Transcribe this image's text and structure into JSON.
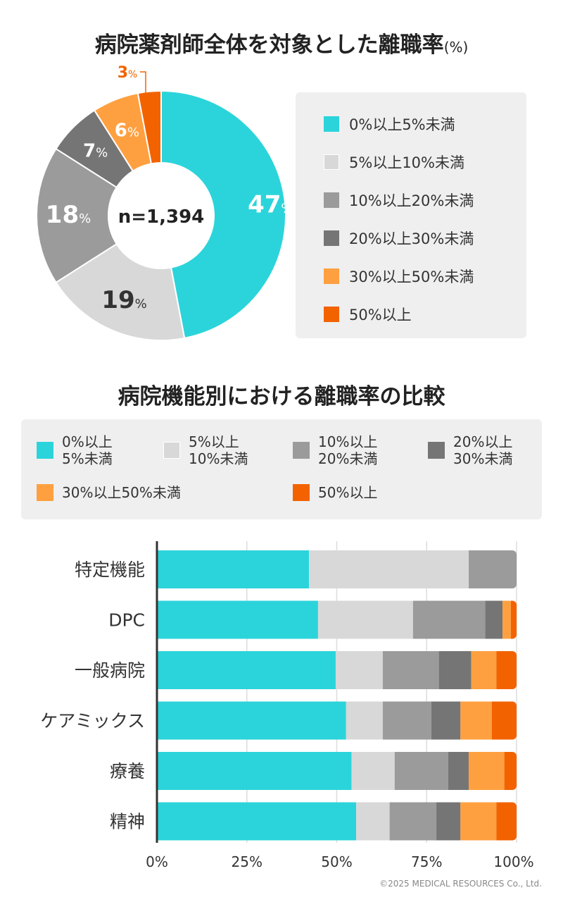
{
  "colors": [
    "#2bd4da",
    "#d8d8d8",
    "#9b9b9b",
    "#757575",
    "#ffa040",
    "#f26300"
  ],
  "chart_data": [
    {
      "type": "pie",
      "title": "病院薬剤師全体を対象とした離職率",
      "title_unit": "(%)",
      "center_label": "n=1,394",
      "categories": [
        "0%以上5%未満",
        "5%以上10%未満",
        "10%以上20%未満",
        "20%以上30%未満",
        "30%以上50%未満",
        "50%以上"
      ],
      "values": [
        47,
        19,
        18,
        7,
        6,
        3
      ],
      "value_suffix": "%",
      "donut": true,
      "legend": "right"
    },
    {
      "type": "bar",
      "orientation": "horizontal",
      "stacked": true,
      "title": "病院機能別における離職率の比較",
      "categories": [
        "特定機能",
        "DPC",
        "一般病院",
        "ケアミックス",
        "療養",
        "精神"
      ],
      "series": [
        {
          "name": "0%以上5%未満",
          "legend_lines": [
            "0%以上",
            "5%未満"
          ],
          "values": [
            42.3,
            44.8,
            49.7,
            52.6,
            54.1,
            55.4
          ]
        },
        {
          "name": "5%以上10%未満",
          "legend_lines": [
            "5%以上",
            "10%未満"
          ],
          "values": [
            44.4,
            26.4,
            13.1,
            10.2,
            12.0,
            9.3
          ]
        },
        {
          "name": "10%以上20%未満",
          "legend_lines": [
            "10%以上",
            "20%未満"
          ],
          "values": [
            13.3,
            20.1,
            15.6,
            13.5,
            14.9,
            13.0
          ]
        },
        {
          "name": "20%以上30%未満",
          "legend_lines": [
            "20%以上",
            "30%未満"
          ],
          "values": [
            0,
            4.8,
            9.0,
            8.1,
            5.7,
            6.7
          ]
        },
        {
          "name": "30%以上50%未満",
          "legend_lines": [
            "30%以上50%未満"
          ],
          "values": [
            0,
            2.3,
            7.0,
            8.7,
            9.9,
            10.0
          ]
        },
        {
          "name": "50%以上",
          "legend_lines": [
            "50%以上"
          ],
          "values": [
            0,
            1.6,
            5.6,
            6.9,
            3.4,
            5.6
          ]
        }
      ],
      "xlim": [
        0,
        100
      ],
      "xticks": [
        "0%",
        "25%",
        "50%",
        "75%",
        "100%"
      ],
      "grid": true,
      "legend": "top"
    }
  ],
  "copyright": "©2025 MEDICAL RESOURCES Co., Ltd."
}
